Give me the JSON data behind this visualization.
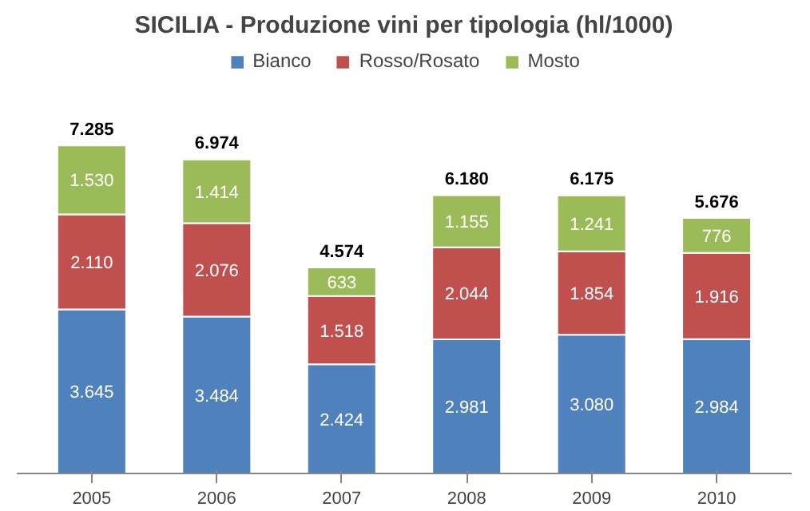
{
  "chart_data": {
    "type": "bar",
    "title": "SICILIA - Produzione vini per tipologia (hl/1000)",
    "categories": [
      "2005",
      "2006",
      "2007",
      "2008",
      "2009",
      "2010"
    ],
    "stacked": true,
    "legend": "top",
    "grid": false,
    "series": [
      {
        "name": "Bianco",
        "color": "#4f81bd",
        "values": [
          3645,
          3484,
          2424,
          2981,
          3080,
          2984
        ],
        "value_labels": [
          "3.645",
          "3.484",
          "2.424",
          "2.981",
          "3.080",
          "2.984"
        ]
      },
      {
        "name": "Rosso/Rosato",
        "color": "#c0504d",
        "values": [
          2110,
          2076,
          1518,
          2044,
          1854,
          1916
        ],
        "value_labels": [
          "2.110",
          "2.076",
          "1.518",
          "2.044",
          "1.854",
          "1.916"
        ]
      },
      {
        "name": "Mosto",
        "color": "#9bbb59",
        "values": [
          1530,
          1414,
          633,
          1155,
          1241,
          776
        ],
        "value_labels": [
          "1.530",
          "1.414",
          "633",
          "1.155",
          "1.241",
          "776"
        ]
      }
    ],
    "totals": [
      "7.285",
      "6.974",
      "4.574",
      "6.180",
      "6.175",
      "5.676"
    ]
  }
}
